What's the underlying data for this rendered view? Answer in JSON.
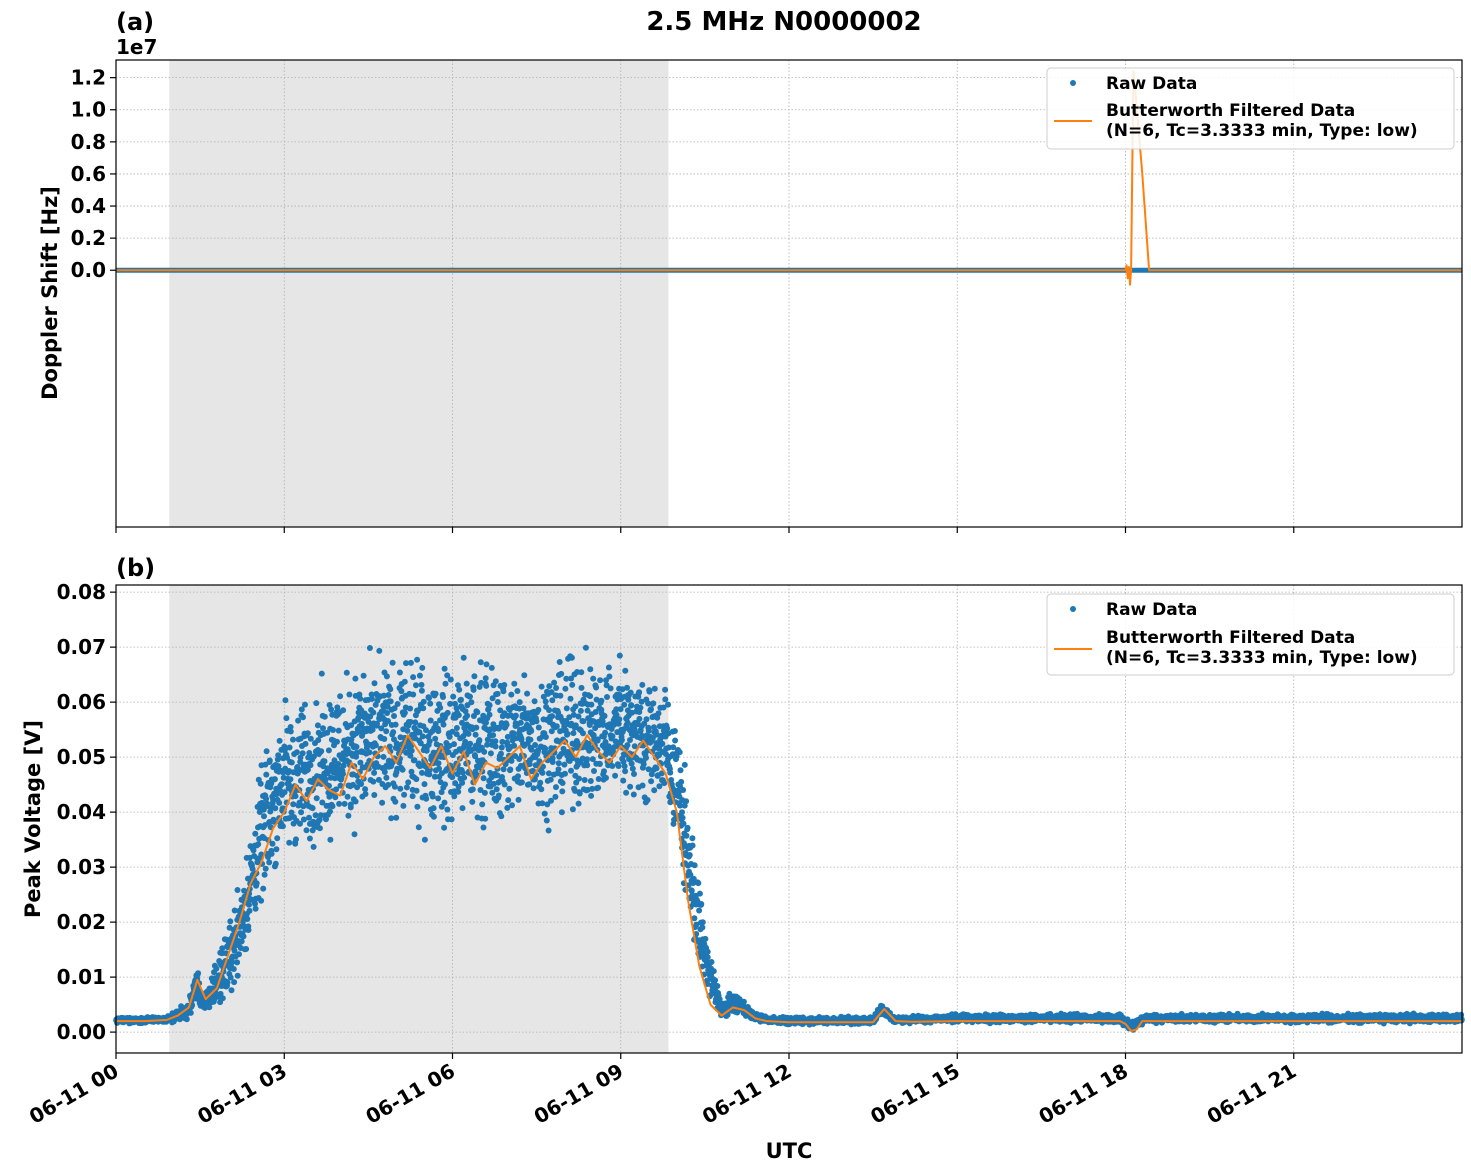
{
  "chart_data": {
    "title": "2.5 MHz N0000002",
    "xlabel": "UTC",
    "x_tick_labels": [
      "06-11 00",
      "06-11 03",
      "06-11 06",
      "06-11 09",
      "06-11 12",
      "06-11 15",
      "06-11 18",
      "06-11 21"
    ],
    "x_range_hours": [
      0,
      24
    ],
    "shaded_region_hours": [
      0.95,
      9.85
    ],
    "grid": true,
    "colors": {
      "raw": "#1f77b4",
      "filtered": "#ff7f0e",
      "shade": "#e6e6e6",
      "grid": "#b0b0b0"
    },
    "legend": {
      "placement": "top-right",
      "raw_label": "Raw Data",
      "filtered_label_line1": "Butterworth Filtered Data",
      "filtered_label_line2": "(N=6, Tc=3.3333 min, Type: low)"
    },
    "panels": [
      {
        "id": "a",
        "label": "(a)",
        "ylabel": "Doppler Shift [Hz]",
        "offset_text": "1e7",
        "ylim": [
          -1.6,
          1.31
        ],
        "y_ticks": [
          0.0,
          0.2,
          0.4,
          0.6,
          0.8,
          1.0,
          1.2
        ],
        "y_tick_labels": [
          "0.0",
          "0.2",
          "0.4",
          "0.6",
          "0.8",
          "1.0",
          "1.2"
        ],
        "raw_baseline": 0.0,
        "filtered_series": {
          "x": [
            0,
            18.0,
            18.02,
            18.04,
            18.06,
            18.08,
            18.1,
            18.14,
            18.18,
            18.3,
            18.42,
            18.45,
            24
          ],
          "y": [
            0.0,
            0.0,
            0.03,
            -0.05,
            0.02,
            -0.09,
            0.0,
            1.24,
            1.1,
            0.6,
            0.0,
            0.0,
            0.0
          ]
        }
      },
      {
        "id": "b",
        "label": "(b)",
        "ylabel": "Peak Voltage [V]",
        "ylim": [
          -0.0038,
          0.0813
        ],
        "y_ticks": [
          0.0,
          0.01,
          0.02,
          0.03,
          0.04,
          0.05,
          0.06,
          0.07,
          0.08
        ],
        "y_tick_labels": [
          "0.00",
          "0.01",
          "0.02",
          "0.03",
          "0.04",
          "0.05",
          "0.06",
          "0.07",
          "0.08"
        ],
        "envelope": {
          "x": [
            0,
            0.9,
            1.3,
            1.45,
            1.55,
            1.75,
            2.0,
            2.3,
            2.6,
            2.9,
            3.2,
            3.5,
            4.0,
            4.5,
            5.0,
            5.5,
            6.0,
            6.5,
            7.0,
            7.5,
            8.0,
            8.5,
            9.0,
            9.5,
            9.8,
            10.0,
            10.2,
            10.4,
            10.6,
            10.8,
            11.0,
            11.15,
            11.35,
            11.6,
            12.0,
            13.0,
            13.5,
            13.65,
            13.85,
            14.0,
            15.0,
            16.0,
            17.0,
            17.9,
            18.1,
            18.35,
            18.5,
            20.0,
            22.0,
            24.0
          ],
          "low": [
            0.0015,
            0.0015,
            0.002,
            0.0045,
            0.003,
            0.003,
            0.004,
            0.01,
            0.02,
            0.027,
            0.028,
            0.03,
            0.032,
            0.033,
            0.034,
            0.033,
            0.032,
            0.033,
            0.034,
            0.035,
            0.036,
            0.037,
            0.038,
            0.039,
            0.038,
            0.03,
            0.018,
            0.008,
            0.003,
            0.002,
            0.003,
            0.003,
            0.002,
            0.0015,
            0.0012,
            0.0012,
            0.0012,
            0.003,
            0.0015,
            0.0015,
            0.0015,
            0.0015,
            0.0015,
            0.0015,
            -0.0005,
            0.0015,
            0.0015,
            0.0015,
            0.0015,
            0.0015
          ],
          "high": [
            0.0028,
            0.003,
            0.006,
            0.0135,
            0.006,
            0.013,
            0.022,
            0.034,
            0.052,
            0.064,
            0.063,
            0.066,
            0.069,
            0.072,
            0.072,
            0.071,
            0.072,
            0.072,
            0.071,
            0.071,
            0.072,
            0.072,
            0.073,
            0.068,
            0.066,
            0.06,
            0.046,
            0.03,
            0.016,
            0.006,
            0.008,
            0.007,
            0.004,
            0.003,
            0.003,
            0.003,
            0.003,
            0.006,
            0.003,
            0.003,
            0.0035,
            0.0035,
            0.0035,
            0.0035,
            0.0025,
            0.0035,
            0.0035,
            0.0035,
            0.0035,
            0.0035
          ]
        },
        "filtered_series": {
          "x": [
            0,
            0.5,
            0.9,
            1.1,
            1.3,
            1.45,
            1.6,
            1.8,
            2.0,
            2.2,
            2.4,
            2.6,
            2.8,
            3.0,
            3.2,
            3.4,
            3.6,
            3.8,
            4.0,
            4.2,
            4.4,
            4.6,
            4.8,
            5.0,
            5.2,
            5.4,
            5.6,
            5.8,
            6.0,
            6.2,
            6.4,
            6.6,
            6.8,
            7.0,
            7.2,
            7.4,
            7.6,
            7.8,
            8.0,
            8.2,
            8.4,
            8.6,
            8.8,
            9.0,
            9.2,
            9.4,
            9.6,
            9.8,
            10.0,
            10.2,
            10.4,
            10.6,
            10.8,
            11.0,
            11.2,
            11.4,
            11.6,
            12.0,
            13.0,
            13.5,
            13.7,
            13.9,
            14.2,
            15.0,
            16.0,
            17.0,
            17.9,
            18.0,
            18.1,
            18.2,
            18.3,
            18.4,
            19.0,
            20.0,
            21.0,
            22.0,
            23.0,
            24.0
          ],
          "y": [
            0.002,
            0.002,
            0.0022,
            0.003,
            0.0045,
            0.0095,
            0.006,
            0.008,
            0.014,
            0.02,
            0.027,
            0.031,
            0.037,
            0.04,
            0.045,
            0.042,
            0.046,
            0.044,
            0.043,
            0.049,
            0.046,
            0.05,
            0.052,
            0.049,
            0.054,
            0.051,
            0.048,
            0.052,
            0.047,
            0.051,
            0.045,
            0.049,
            0.048,
            0.05,
            0.052,
            0.046,
            0.049,
            0.051,
            0.053,
            0.05,
            0.054,
            0.051,
            0.049,
            0.052,
            0.05,
            0.053,
            0.05,
            0.047,
            0.04,
            0.024,
            0.012,
            0.005,
            0.003,
            0.0045,
            0.004,
            0.0025,
            0.002,
            0.0018,
            0.0018,
            0.0018,
            0.0042,
            0.002,
            0.0019,
            0.002,
            0.002,
            0.002,
            0.002,
            0.0015,
            0.0002,
            0.0005,
            0.002,
            0.002,
            0.002,
            0.002,
            0.002,
            0.002,
            0.002,
            0.002
          ]
        }
      }
    ]
  }
}
